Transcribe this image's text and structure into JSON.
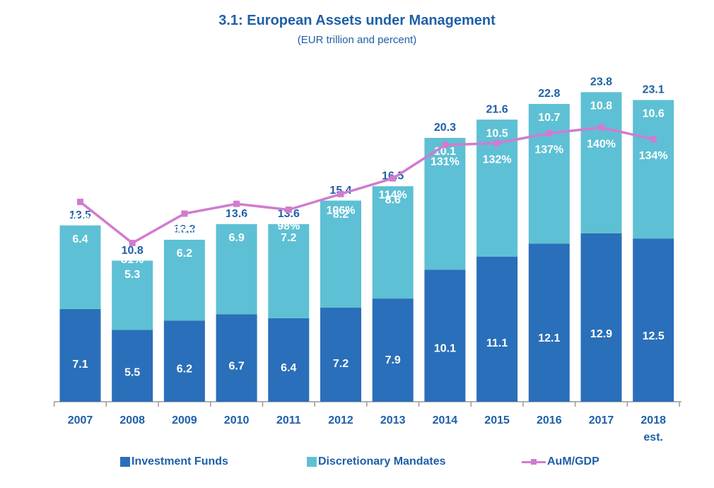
{
  "chart_data": {
    "type": "bar",
    "title": "3.1: European Assets under Management",
    "subtitle": "(EUR trillion and percent)",
    "stacked": true,
    "categories": [
      "2007",
      "2008",
      "2009",
      "2010",
      "2011",
      "2012",
      "2013",
      "2014",
      "2015",
      "2016",
      "2017",
      "2018"
    ],
    "category_sublabels": [
      "",
      "",
      "",
      "",
      "",
      "",
      "",
      "",
      "",
      "",
      "",
      "est."
    ],
    "series": [
      {
        "name": "Investment Funds",
        "type": "bar",
        "color": "#2A6FB9",
        "values": [
          7.1,
          5.5,
          6.2,
          6.7,
          6.4,
          7.2,
          7.9,
          10.1,
          11.1,
          12.1,
          12.9,
          12.5
        ],
        "labels": [
          "7.1",
          "5.5",
          "6.2",
          "6.7",
          "6.4",
          "7.2",
          "7.9",
          "10.1",
          "11.1",
          "12.1",
          "12.9",
          "12.5"
        ]
      },
      {
        "name": "Discretionary Mandates",
        "type": "bar",
        "color": "#5EC0D4",
        "values": [
          6.4,
          5.3,
          6.2,
          6.9,
          7.2,
          8.2,
          8.6,
          10.1,
          10.5,
          10.7,
          10.8,
          10.6
        ],
        "labels": [
          "6.4",
          "5.3",
          "6.2",
          "6.9",
          "7.2",
          "8.2",
          "8.6",
          "10.1",
          "10.5",
          "10.7",
          "10.8",
          "10.6"
        ]
      },
      {
        "name": "AuM/GDP",
        "type": "line",
        "color": "#D17BD0",
        "values": [
          102,
          81,
          96,
          101,
          98,
          106,
          114,
          131,
          132,
          137,
          140,
          134
        ],
        "labels": [
          "102%",
          "81%",
          "96%",
          "101%",
          "98%",
          "106%",
          "114%",
          "131%",
          "132%",
          "137%",
          "140%",
          "134%"
        ]
      }
    ],
    "totals": [
      13.5,
      10.8,
      12.3,
      13.6,
      13.6,
      15.4,
      16.5,
      20.3,
      21.6,
      22.8,
      23.8,
      23.1
    ],
    "total_labels": [
      "13.5",
      "10.8",
      "12.3",
      "13.6",
      "13.6",
      "15.4",
      "16.5",
      "20.3",
      "21.6",
      "22.8",
      "23.8",
      "23.1"
    ],
    "ylim": [
      0,
      26.1
    ],
    "line_ylim": [
      0,
      174
    ],
    "grid": false,
    "legend": "bottom",
    "colors": {
      "title": "#1F5FA8",
      "axis": "#9A9A9A",
      "bar_label": "#FFFFFF",
      "total_label": "#1F5FA8",
      "tick_label": "#1F5FA8"
    }
  }
}
